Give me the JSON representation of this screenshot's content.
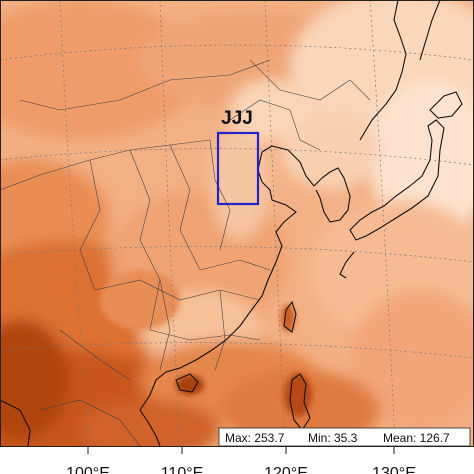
{
  "map": {
    "region_label": "JJJ",
    "stats": {
      "max_label": "Max: 253.7",
      "min_label": "Min: 35.3",
      "mean_label": "Mean: 126.7"
    },
    "longitude_labels": [
      "100°E",
      "110°E",
      "120°E",
      "130°E"
    ],
    "colors": {
      "low": "#fde6d2",
      "light": "#f9c7a3",
      "mid": "#f2a271",
      "high": "#e27d43",
      "very_high": "#c9561d",
      "highest": "#a83f10",
      "box": "#2323c8",
      "lines": "#1a1a1a"
    }
  }
}
